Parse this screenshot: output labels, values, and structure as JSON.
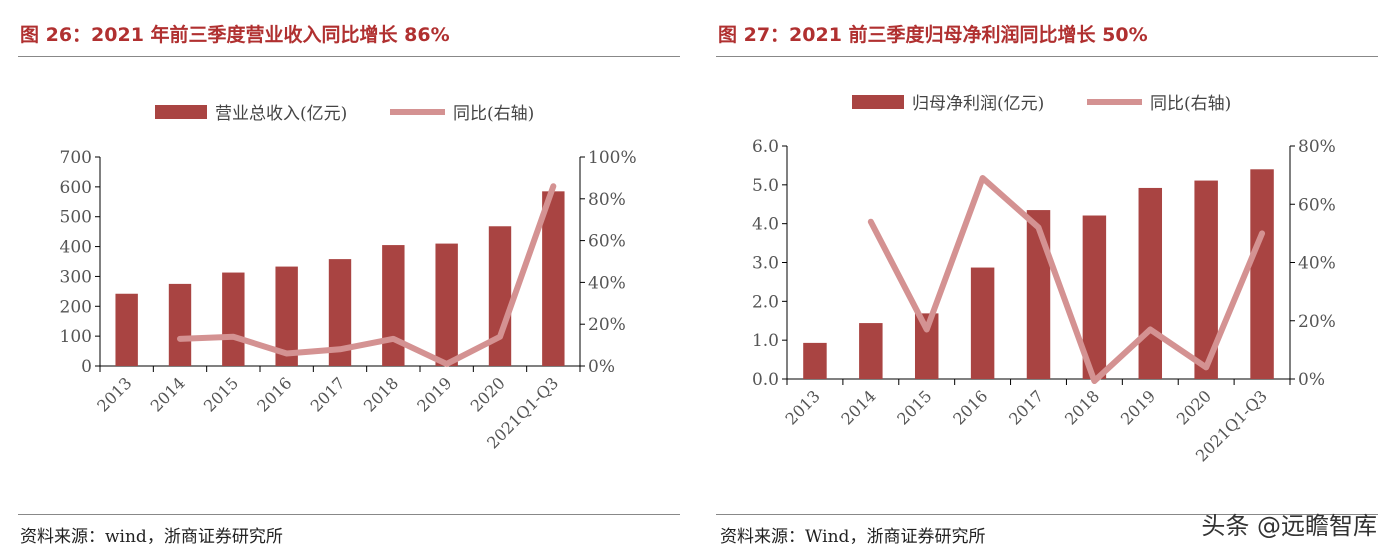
{
  "colors": {
    "bar": "#a94442",
    "line": "#d49292",
    "title": "#b03030"
  },
  "watermark": "头条 @远瞻智库",
  "chart_data": [
    {
      "type": "bar+line",
      "title": "图 26：2021 年前三季度营业收入同比增长 86%",
      "source": "资料来源：wind，浙商证券研究所",
      "categories": [
        "2013",
        "2014",
        "2015",
        "2016",
        "2017",
        "2018",
        "2019",
        "2020",
        "2021Q1-Q3"
      ],
      "series": [
        {
          "name": "营业总收入(亿元)",
          "type": "bar",
          "axis": "left",
          "values": [
            242,
            275,
            313,
            333,
            358,
            405,
            410,
            468,
            585
          ]
        },
        {
          "name": "同比(右轴)",
          "type": "line",
          "axis": "right",
          "values": [
            null,
            13,
            14,
            6,
            8,
            13,
            1,
            14,
            86
          ]
        }
      ],
      "ylim": [
        0,
        700
      ],
      "yticks": [
        "0",
        "100",
        "200",
        "300",
        "400",
        "500",
        "600",
        "700"
      ],
      "y2lim": [
        0,
        100
      ],
      "y2ticks": [
        "0%",
        "20%",
        "40%",
        "60%",
        "80%",
        "100%"
      ],
      "legend": "top"
    },
    {
      "type": "bar+line",
      "title": "图 27：2021 前三季度归母净利润同比增长 50%",
      "source": "资料来源：Wind，浙商证券研究所",
      "categories": [
        "2013",
        "2014",
        "2015",
        "2016",
        "2017",
        "2018",
        "2019",
        "2020",
        "2021Q1-Q3"
      ],
      "series": [
        {
          "name": "归母净利润(亿元)",
          "type": "bar",
          "axis": "left",
          "values": [
            0.93,
            1.44,
            1.69,
            2.87,
            4.35,
            4.21,
            4.92,
            5.11,
            5.4
          ]
        },
        {
          "name": "同比(右轴)",
          "type": "line",
          "axis": "right",
          "values": [
            null,
            54,
            17,
            69,
            52,
            -1,
            17,
            4,
            50
          ]
        }
      ],
      "ylim": [
        0,
        6
      ],
      "yticks": [
        "0.0",
        "1.0",
        "2.0",
        "3.0",
        "4.0",
        "5.0",
        "6.0"
      ],
      "y2lim": [
        0,
        80
      ],
      "y2ticks": [
        "0%",
        "20%",
        "40%",
        "60%",
        "80%"
      ],
      "legend": "top"
    }
  ]
}
